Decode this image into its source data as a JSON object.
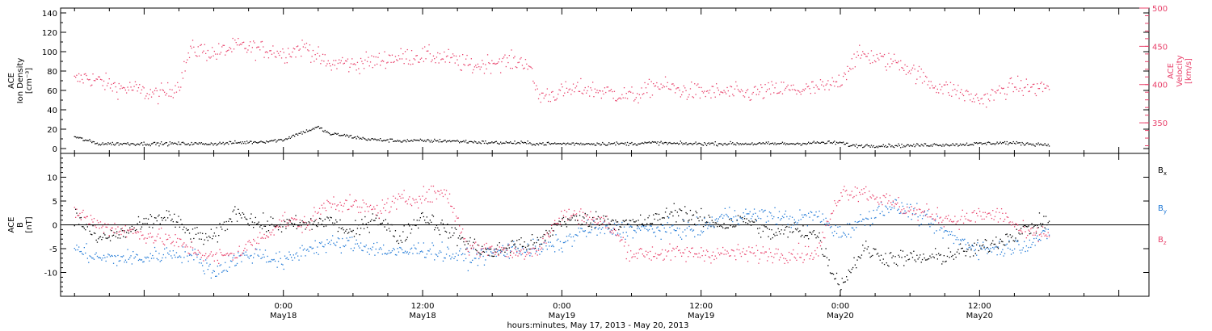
{
  "chart_data": [
    {
      "type": "scatter",
      "ylabel_lines": [
        "ACE",
        "Ion Density",
        "[cm⁻³]"
      ],
      "ylim": [
        -5,
        145
      ],
      "yticks": [
        0,
        20,
        40,
        60,
        80,
        100,
        120,
        140
      ],
      "y2label_lines": [
        "ACE",
        "Velocity",
        "[km/s]"
      ],
      "y2lim": [
        310,
        500
      ],
      "y2ticks": [
        350,
        400,
        450,
        500
      ],
      "series": [
        {
          "role": "ion-density",
          "axis": "left",
          "color": "#000000",
          "x": [
            -18,
            -16,
            -14,
            -12,
            -10,
            -8,
            -6,
            -4,
            -2,
            0,
            1,
            2,
            3,
            4,
            5,
            6,
            7,
            8,
            10,
            12,
            14,
            16,
            18,
            20,
            22,
            24,
            26,
            28,
            30,
            32,
            34,
            36,
            38,
            40,
            42,
            44,
            46,
            48,
            49,
            50,
            52,
            54,
            56,
            58,
            60,
            62,
            64,
            66
          ],
          "y": [
            12,
            5,
            5,
            5,
            5,
            5,
            5,
            6,
            7,
            9,
            14,
            18,
            22,
            15,
            14,
            12,
            10,
            9,
            8,
            8,
            8,
            7,
            6,
            6,
            5,
            5,
            5,
            5,
            5,
            6,
            5,
            5,
            5,
            5,
            5,
            5,
            6,
            6,
            3,
            3,
            3,
            3,
            4,
            4,
            5,
            6,
            5,
            4
          ]
        },
        {
          "role": "velocity",
          "axis": "right",
          "color": "#e8406a",
          "x": [
            -18,
            -17,
            -16,
            -15,
            -14,
            -13,
            -12,
            -11,
            -10,
            -9,
            -8,
            -7,
            -6,
            -5,
            -4,
            -3,
            -2,
            -1,
            0,
            1,
            2,
            3,
            4,
            5,
            6,
            7,
            8,
            9,
            10,
            11,
            12,
            13,
            14,
            15,
            16,
            17,
            18,
            19,
            20,
            21,
            22,
            23,
            24,
            25,
            26,
            27,
            28,
            29,
            30,
            31,
            32,
            33,
            34,
            35,
            36,
            37,
            38,
            39,
            40,
            41,
            42,
            43,
            44,
            45,
            46,
            47,
            48,
            49,
            50,
            51,
            52,
            53,
            54,
            55,
            56,
            57,
            58,
            59,
            60,
            61,
            62,
            63,
            64,
            65,
            66
          ],
          "y": [
            405,
            410,
            405,
            400,
            395,
            395,
            390,
            387,
            390,
            400,
            445,
            445,
            440,
            445,
            450,
            448,
            446,
            445,
            440,
            445,
            450,
            435,
            425,
            430,
            425,
            430,
            430,
            435,
            435,
            437,
            438,
            437,
            435,
            430,
            425,
            425,
            430,
            430,
            430,
            430,
            385,
            387,
            390,
            393,
            395,
            392,
            390,
            387,
            385,
            388,
            400,
            397,
            393,
            391,
            390,
            390,
            390,
            389,
            388,
            390,
            392,
            394,
            393,
            393,
            395,
            397,
            405,
            430,
            440,
            435,
            430,
            430,
            420,
            410,
            400,
            395,
            392,
            385,
            380,
            385,
            393,
            398,
            396,
            395,
            398
          ]
        }
      ]
    },
    {
      "type": "scatter",
      "ylabel_lines": [
        "ACE",
        "B",
        "[nT]"
      ],
      "ylim": [
        -15,
        15
      ],
      "yticks": [
        -10,
        -5,
        0,
        5,
        10
      ],
      "zero_line": true,
      "legend": {
        "placement": "right",
        "items": [
          {
            "base": "B",
            "sub": "x",
            "color": "#000000"
          },
          {
            "base": "B",
            "sub": "y",
            "color": "#1e78d6"
          },
          {
            "base": "B",
            "sub": "z",
            "color": "#e8406a"
          }
        ]
      },
      "series": [
        {
          "role": "Bx",
          "color": "#000000",
          "x": [
            -18,
            -16,
            -14,
            -12,
            -10,
            -8,
            -6,
            -4,
            -2,
            0,
            2,
            4,
            6,
            8,
            10,
            12,
            14,
            16,
            18,
            20,
            22,
            24,
            26,
            28,
            30,
            32,
            34,
            36,
            38,
            40,
            42,
            44,
            46,
            47,
            48,
            50,
            52,
            54,
            56,
            58,
            60,
            62,
            64,
            66
          ],
          "y": [
            2,
            -3,
            -2,
            0,
            2,
            -2,
            -3,
            3,
            0,
            0,
            0,
            1,
            -2,
            2,
            -3,
            2,
            -1,
            -4,
            -6,
            -4,
            -4,
            1,
            1,
            1,
            0,
            1,
            3,
            1,
            0,
            1,
            -2,
            -1,
            -2,
            -8,
            -13,
            -5,
            -7,
            -7,
            -7,
            -6,
            -5,
            -3,
            -1,
            1
          ]
        },
        {
          "role": "By",
          "color": "#1e78d6",
          "x": [
            -18,
            -16,
            -14,
            -12,
            -10,
            -8,
            -6,
            -4,
            -2,
            0,
            2,
            4,
            6,
            8,
            10,
            12,
            14,
            16,
            18,
            20,
            22,
            24,
            26,
            28,
            30,
            32,
            34,
            36,
            38,
            40,
            42,
            44,
            46,
            48,
            50,
            52,
            54,
            56,
            58,
            60,
            62,
            64,
            66
          ],
          "y": [
            -5,
            -7,
            -7,
            -7,
            -6,
            -6,
            -10,
            -7,
            -6,
            -8,
            -5,
            -4,
            -4,
            -5,
            -6,
            -5,
            -6,
            -7,
            -6,
            -5,
            -5,
            -4,
            -1,
            -1,
            -1,
            -1,
            -1,
            -1,
            2,
            2,
            2,
            1,
            2,
            -2,
            1,
            4,
            3,
            0,
            -3,
            -5,
            -5,
            -4,
            -2
          ]
        },
        {
          "role": "Bz",
          "color": "#e8406a",
          "x": [
            -18,
            -16,
            -14,
            -12,
            -10,
            -8,
            -6,
            -4,
            -2,
            0,
            2,
            4,
            6,
            8,
            10,
            12,
            14,
            16,
            18,
            20,
            22,
            24,
            26,
            28,
            30,
            32,
            34,
            36,
            38,
            40,
            42,
            44,
            46,
            48,
            50,
            52,
            54,
            56,
            58,
            60,
            62,
            64,
            66
          ],
          "y": [
            3,
            0,
            -1,
            -2,
            -3,
            -5,
            -7,
            -6,
            -3,
            1,
            0,
            5,
            4,
            3,
            5,
            6,
            7,
            -5,
            -5,
            -6,
            -5,
            2,
            2,
            0,
            -6,
            -6,
            -6,
            -6,
            -6,
            -6,
            -6,
            -6,
            -6,
            7,
            7,
            5,
            3,
            2,
            1,
            2,
            2,
            -2,
            -2
          ]
        }
      ]
    }
  ],
  "x_axis": {
    "range_hours": [
      -19.2,
      74.6
    ],
    "tick_every_hours": 3,
    "labels": [
      {
        "hour": 0,
        "time": "0:00",
        "date": "May18"
      },
      {
        "hour": 12,
        "time": "12:00",
        "date": "May18"
      },
      {
        "hour": 24,
        "time": "0:00",
        "date": "May19"
      },
      {
        "hour": 36,
        "time": "12:00",
        "date": "May19"
      },
      {
        "hour": 48,
        "time": "0:00",
        "date": "May20"
      },
      {
        "hour": 60,
        "time": "12:00",
        "date": "May20"
      }
    ],
    "title": "hours:minutes, May 17, 2013 - May 20, 2013"
  },
  "colors": {
    "density": "#000000",
    "velocity": "#e8406a",
    "bx": "#000000",
    "by": "#1e78d6",
    "bz": "#e8406a"
  }
}
